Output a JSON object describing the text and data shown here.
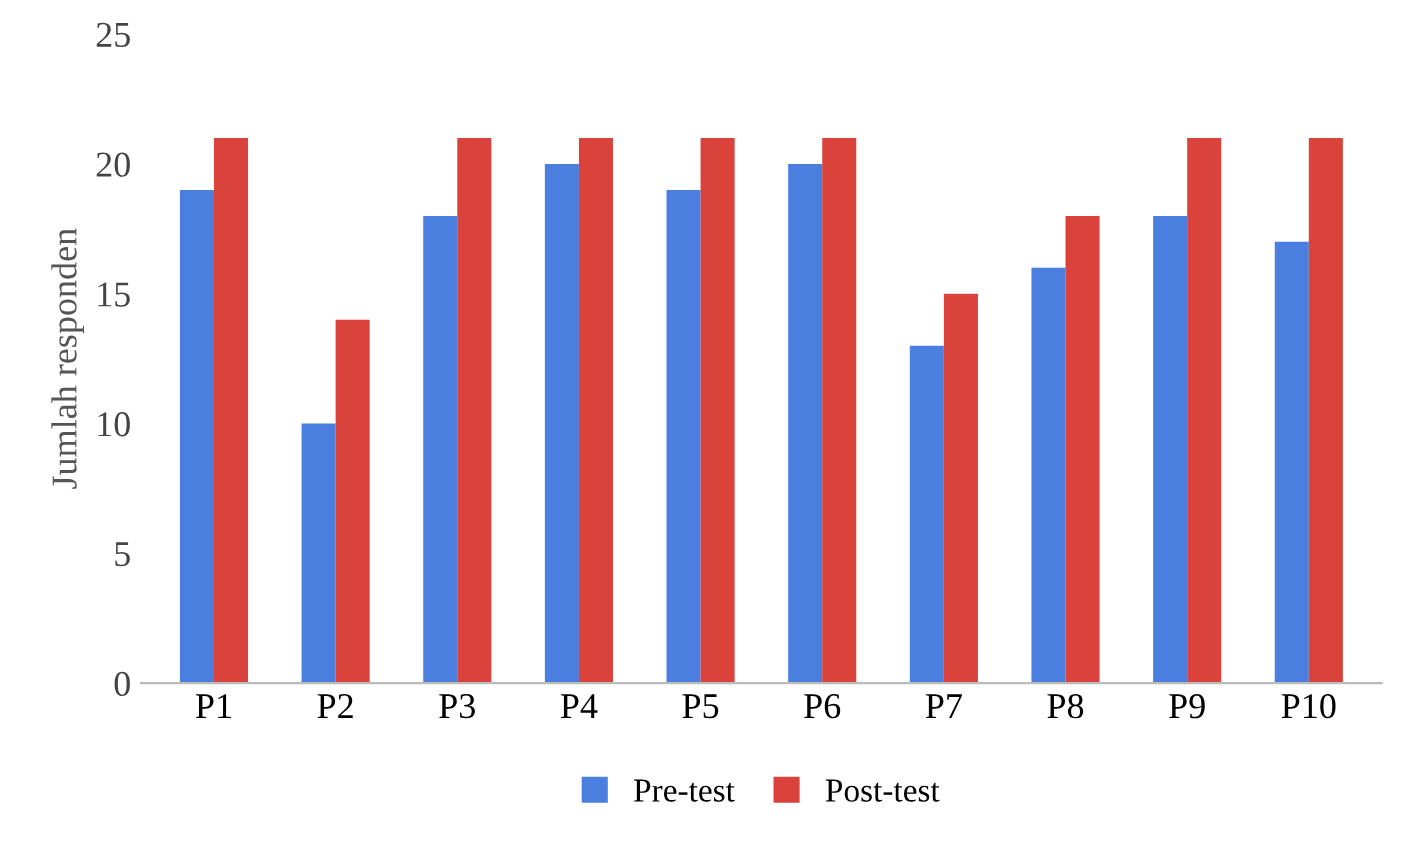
{
  "chart_data": {
    "type": "bar",
    "ylabel": "Jumlah responden",
    "categories": [
      "P1",
      "P2",
      "P3",
      "P4",
      "P5",
      "P6",
      "P7",
      "P8",
      "P9",
      "P10"
    ],
    "series": [
      {
        "name": "Pre-test",
        "color": "#4a7fe0",
        "values": [
          19,
          10,
          18,
          20,
          19,
          20,
          13,
          16,
          18,
          17
        ]
      },
      {
        "name": "Post-test",
        "color": "#d9433b",
        "values": [
          21,
          14,
          21,
          21,
          21,
          21,
          15,
          18,
          21,
          21
        ]
      }
    ],
    "ylim": [
      0,
      25
    ],
    "yticks": [
      0,
      5,
      10,
      15,
      20,
      25
    ],
    "grid": false,
    "legend": "bottom"
  }
}
